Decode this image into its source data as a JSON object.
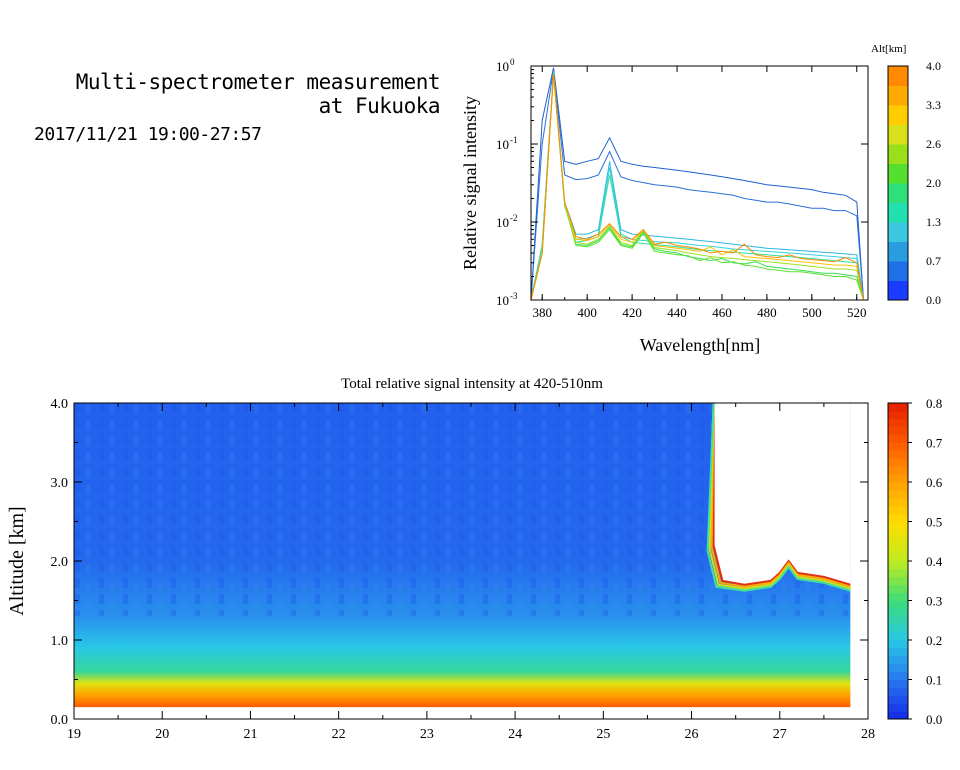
{
  "header": {
    "title_line1": "Multi-spectrometer measurement",
    "title_line2": "at Fukuoka",
    "datetime": "2017/11/21 19:00-27:57"
  },
  "chart_data": [
    {
      "type": "line",
      "xlabel": "Wavelength[nm]",
      "ylabel": "Relative signal intensity",
      "xlim": [
        375,
        525
      ],
      "ylim": [
        0.001,
        1
      ],
      "yscale": "log",
      "x_ticks": [
        380,
        400,
        420,
        440,
        460,
        480,
        500,
        520
      ],
      "y_ticks": [
        {
          "value": 0.001,
          "base": "10",
          "exp": "-3"
        },
        {
          "value": 0.01,
          "base": "10",
          "exp": "-2"
        },
        {
          "value": 0.1,
          "base": "10",
          "exp": "-1"
        },
        {
          "value": 1,
          "base": "10",
          "exp": "0"
        }
      ],
      "colorbar": {
        "title": "Alt[km]",
        "ticks": [
          "0.0",
          "0.7",
          "1.3",
          "2.0",
          "2.6",
          "3.3",
          "4.0"
        ],
        "colors": [
          "#1a3cff",
          "#1f6fe6",
          "#2a9ce0",
          "#3cc7e0",
          "#22e0b0",
          "#2fe07a",
          "#55e030",
          "#99e01a",
          "#d7e01a",
          "#ffcc00",
          "#ffaa00",
          "#ff8a00"
        ]
      },
      "x": [
        375,
        380,
        385,
        390,
        395,
        400,
        405,
        410,
        415,
        420,
        425,
        430,
        435,
        440,
        445,
        450,
        455,
        460,
        465,
        470,
        475,
        480,
        485,
        490,
        495,
        500,
        505,
        510,
        515,
        520,
        523
      ],
      "series": [
        {
          "color": "#1f5fcf",
          "values": [
            0.001,
            0.2,
            0.95,
            0.06,
            0.055,
            0.06,
            0.065,
            0.12,
            0.06,
            0.055,
            0.052,
            0.05,
            0.048,
            0.046,
            0.044,
            0.042,
            0.04,
            0.038,
            0.036,
            0.034,
            0.032,
            0.03,
            0.029,
            0.028,
            0.027,
            0.026,
            0.024,
            0.023,
            0.022,
            0.018,
            0.001
          ]
        },
        {
          "color": "#2a6fd8",
          "values": [
            0.001,
            0.1,
            0.9,
            0.04,
            0.035,
            0.036,
            0.04,
            0.08,
            0.038,
            0.034,
            0.032,
            0.03,
            0.029,
            0.028,
            0.026,
            0.025,
            0.024,
            0.023,
            0.022,
            0.02,
            0.019,
            0.018,
            0.018,
            0.017,
            0.016,
            0.015,
            0.015,
            0.014,
            0.014,
            0.012,
            0.001
          ]
        },
        {
          "color": "#2bb7e0",
          "values": [
            0.001,
            0.005,
            0.85,
            0.018,
            0.007,
            0.007,
            0.008,
            0.06,
            0.008,
            0.007,
            0.0068,
            0.0066,
            0.0064,
            0.0062,
            0.006,
            0.0058,
            0.0056,
            0.0054,
            0.0052,
            0.005,
            0.0048,
            0.0046,
            0.0045,
            0.0044,
            0.0043,
            0.0042,
            0.0041,
            0.004,
            0.0039,
            0.0038,
            0.001
          ]
        },
        {
          "color": "#33d2d8",
          "values": [
            0.001,
            0.005,
            0.85,
            0.017,
            0.006,
            0.0062,
            0.007,
            0.05,
            0.007,
            0.006,
            0.0058,
            0.0056,
            0.0055,
            0.0054,
            0.0052,
            0.005,
            0.0049,
            0.0047,
            0.0045,
            0.0044,
            0.0043,
            0.0042,
            0.0041,
            0.004,
            0.0039,
            0.0038,
            0.0037,
            0.0036,
            0.0035,
            0.0034,
            0.001
          ]
        },
        {
          "color": "#2fe0a0",
          "values": [
            0.001,
            0.005,
            0.8,
            0.016,
            0.0055,
            0.0058,
            0.0065,
            0.04,
            0.0065,
            0.0055,
            0.0053,
            0.0051,
            0.005,
            0.0048,
            0.0046,
            0.0044,
            0.0043,
            0.0042,
            0.0041,
            0.004,
            0.0039,
            0.0038,
            0.0037,
            0.0036,
            0.0035,
            0.0034,
            0.0033,
            0.0032,
            0.0031,
            0.003,
            0.001
          ]
        },
        {
          "color": "#33dd55",
          "values": [
            0.001,
            0.004,
            0.8,
            0.018,
            0.0052,
            0.005,
            0.0058,
            0.0085,
            0.0052,
            0.0048,
            0.0075,
            0.0045,
            0.0042,
            0.004,
            0.0036,
            0.0034,
            0.0032,
            0.0034,
            0.003,
            0.0029,
            0.0031,
            0.0027,
            0.0026,
            0.0025,
            0.0024,
            0.0023,
            0.0022,
            0.0022,
            0.0021,
            0.002,
            0.001
          ]
        },
        {
          "color": "#5fe02a",
          "values": [
            0.001,
            0.004,
            0.8,
            0.017,
            0.005,
            0.0048,
            0.0055,
            0.008,
            0.005,
            0.0046,
            0.0072,
            0.0042,
            0.004,
            0.0038,
            0.0037,
            0.0032,
            0.0035,
            0.003,
            0.0031,
            0.0028,
            0.0027,
            0.0025,
            0.0024,
            0.0023,
            0.0023,
            0.0022,
            0.0021,
            0.002,
            0.002,
            0.0018,
            0.001
          ]
        },
        {
          "color": "#a0e020",
          "values": [
            0.001,
            0.004,
            0.8,
            0.017,
            0.0055,
            0.0052,
            0.006,
            0.009,
            0.0055,
            0.005,
            0.0078,
            0.0047,
            0.0045,
            0.0043,
            0.004,
            0.0038,
            0.0036,
            0.0035,
            0.0034,
            0.0033,
            0.0032,
            0.0031,
            0.003,
            0.0029,
            0.0028,
            0.0027,
            0.0026,
            0.0025,
            0.0025,
            0.0024,
            0.001
          ]
        },
        {
          "color": "#ffc000",
          "values": [
            0.001,
            0.004,
            0.8,
            0.018,
            0.006,
            0.0058,
            0.0065,
            0.0095,
            0.006,
            0.0055,
            0.008,
            0.005,
            0.0048,
            0.0046,
            0.0044,
            0.0042,
            0.0048,
            0.0038,
            0.0044,
            0.0036,
            0.0035,
            0.0034,
            0.0033,
            0.0032,
            0.0031,
            0.003,
            0.0029,
            0.0028,
            0.0028,
            0.0027,
            0.001
          ]
        },
        {
          "color": "#ff8a00",
          "values": [
            0.001,
            0.004,
            0.8,
            0.018,
            0.0065,
            0.006,
            0.007,
            0.0095,
            0.0065,
            0.006,
            0.008,
            0.0052,
            0.0055,
            0.005,
            0.0048,
            0.0045,
            0.004,
            0.0042,
            0.004,
            0.0052,
            0.0038,
            0.0036,
            0.0035,
            0.0038,
            0.0034,
            0.0033,
            0.0032,
            0.0031,
            0.0035,
            0.003,
            0.001
          ]
        }
      ]
    },
    {
      "type": "heatmap",
      "title": "Total relative signal intensity at 420-510nm",
      "xlabel": "",
      "ylabel": "Altitude [km]",
      "xlim": [
        19,
        28
      ],
      "ylim": [
        0,
        4
      ],
      "x_ticks": [
        "19",
        "20",
        "21",
        "22",
        "23",
        "24",
        "25",
        "26",
        "27",
        "28"
      ],
      "y_ticks": [
        "0.0",
        "1.0",
        "2.0",
        "3.0",
        "4.0"
      ],
      "data_time_range": [
        19,
        27.8
      ],
      "data_altitude_range": [
        0.15,
        4.0
      ],
      "cloud_onset_time": 26.25,
      "cloud_base_km": [
        [
          26.25,
          2.2
        ],
        [
          26.35,
          1.75
        ],
        [
          26.6,
          1.7
        ],
        [
          26.9,
          1.75
        ],
        [
          27.0,
          1.85
        ],
        [
          27.1,
          2.0
        ],
        [
          27.2,
          1.85
        ],
        [
          27.5,
          1.8
        ],
        [
          27.8,
          1.7
        ]
      ],
      "intensity_profile": [
        {
          "alt": 0.15,
          "value": 0.7
        },
        {
          "alt": 0.3,
          "value": 0.6
        },
        {
          "alt": 0.45,
          "value": 0.45
        },
        {
          "alt": 0.6,
          "value": 0.27
        },
        {
          "alt": 0.9,
          "value": 0.2
        },
        {
          "alt": 1.3,
          "value": 0.13
        },
        {
          "alt": 2.0,
          "value": 0.08
        },
        {
          "alt": 4.0,
          "value": 0.07
        }
      ],
      "colorbar": {
        "ticks": [
          "0.0",
          "0.1",
          "0.2",
          "0.3",
          "0.4",
          "0.5",
          "0.6",
          "0.7",
          "0.8"
        ],
        "range": [
          0,
          0.8
        ]
      }
    }
  ]
}
